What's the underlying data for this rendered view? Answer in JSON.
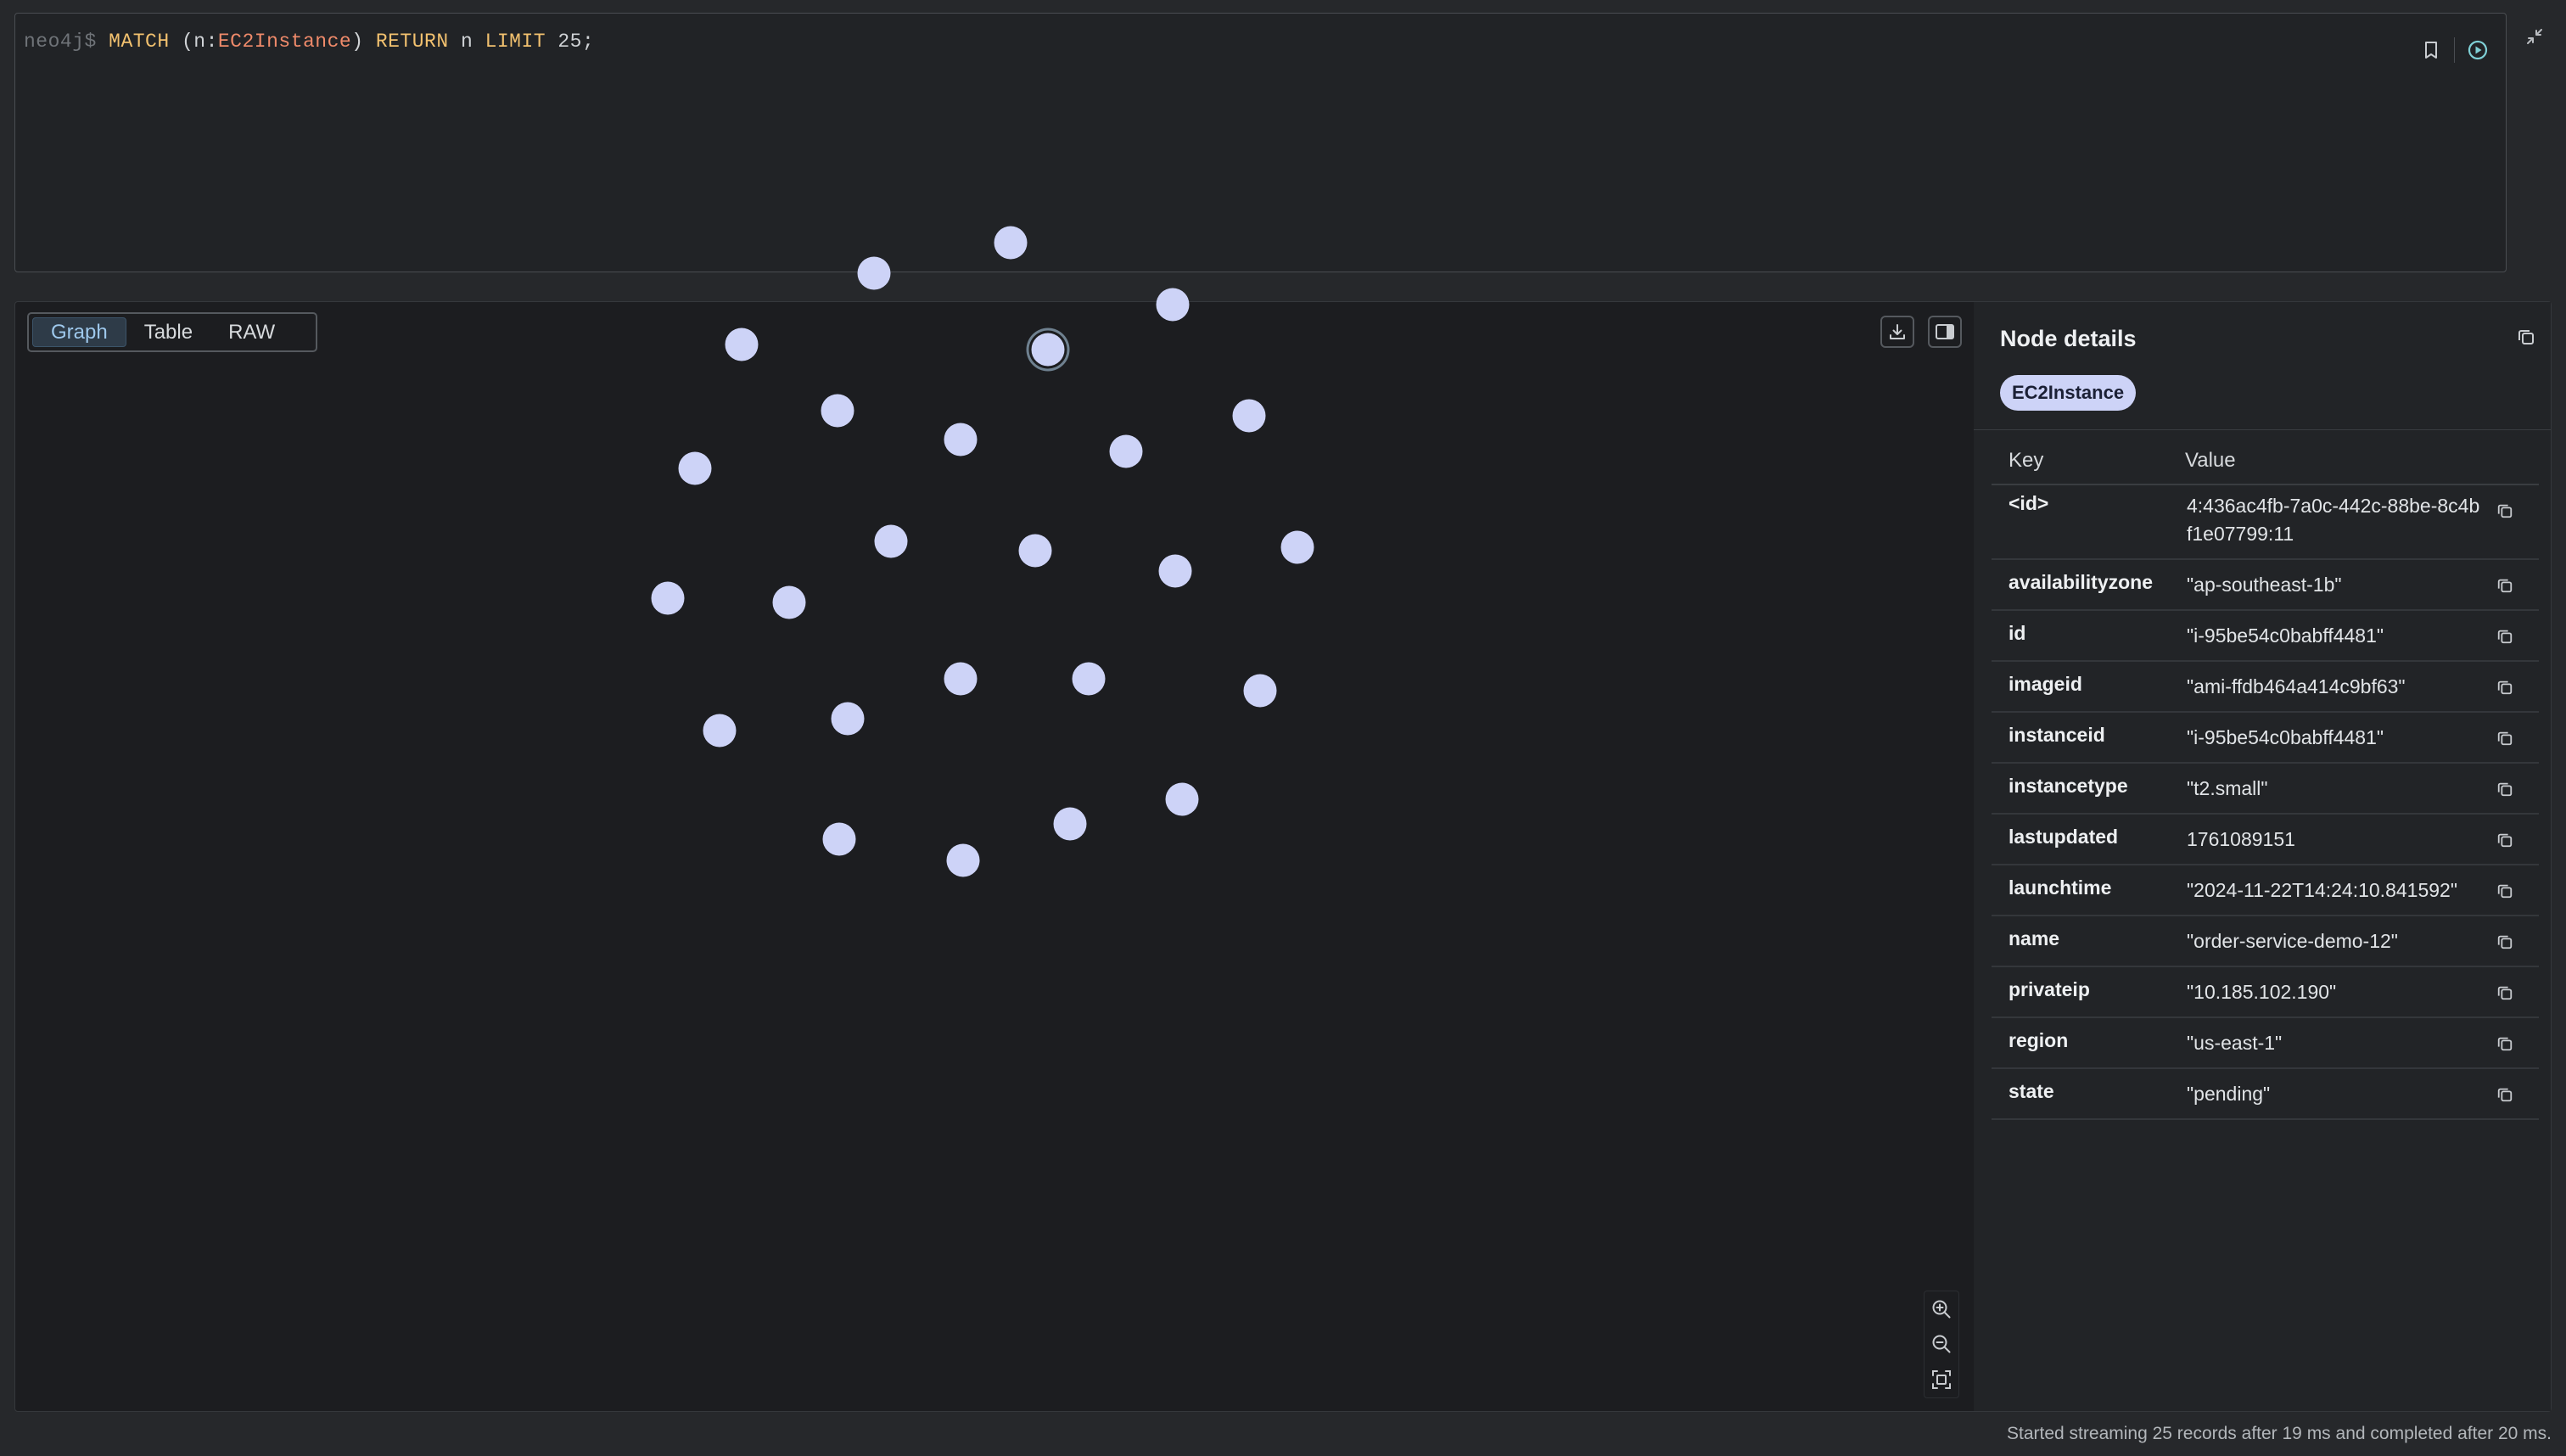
{
  "editor": {
    "prompt": "neo4j$",
    "query_tokens": [
      {
        "text": " ",
        "type": "plain"
      },
      {
        "text": "MATCH",
        "type": "kw"
      },
      {
        "text": " (n:",
        "type": "plain"
      },
      {
        "text": "EC2Instance",
        "type": "label"
      },
      {
        "text": ") ",
        "type": "plain"
      },
      {
        "text": "RETURN",
        "type": "kw"
      },
      {
        "text": " n ",
        "type": "plain"
      },
      {
        "text": "LIMIT",
        "type": "kw"
      },
      {
        "text": " 25",
        "type": "num"
      },
      {
        "text": ";",
        "type": "plain"
      }
    ],
    "icons": [
      "bookmark-icon",
      "run-icon",
      "collapse-icon"
    ]
  },
  "result": {
    "tabs": [
      {
        "label": "Graph",
        "active": true
      },
      {
        "label": "Table",
        "active": false
      },
      {
        "label": "RAW",
        "active": false
      }
    ],
    "node_count": 25,
    "node_color": "#cdd3f7",
    "tool_icons": [
      "download-icon",
      "panel-toggle-icon"
    ],
    "zoom_icons": [
      "zoom-in-icon",
      "zoom-out-icon",
      "fit-view-icon"
    ]
  },
  "details": {
    "title": "Node details",
    "label": "EC2Instance",
    "key_header": "Key",
    "value_header": "Value",
    "properties": [
      {
        "key": "<id>",
        "value": "4:436ac4fb-7a0c-442c-88be-8c4bf1e07799:11"
      },
      {
        "key": "availabilityzone",
        "value": "\"ap-southeast-1b\""
      },
      {
        "key": "id",
        "value": "\"i-95be54c0babff4481\""
      },
      {
        "key": "imageid",
        "value": "\"ami-ffdb464a414c9bf63\""
      },
      {
        "key": "instanceid",
        "value": "\"i-95be54c0babff4481\""
      },
      {
        "key": "instancetype",
        "value": "\"t2.small\""
      },
      {
        "key": "lastupdated",
        "value": "1761089151"
      },
      {
        "key": "launchtime",
        "value": "\"2024-11-22T14:24:10.841592\""
      },
      {
        "key": "name",
        "value": "\"order-service-demo-12\""
      },
      {
        "key": "privateip",
        "value": "\"10.185.102.190\""
      },
      {
        "key": "region",
        "value": "\"us-east-1\""
      },
      {
        "key": "state",
        "value": "\"pending\""
      }
    ]
  },
  "status": "Started streaming 25 records after 19 ms and completed after 20 ms."
}
